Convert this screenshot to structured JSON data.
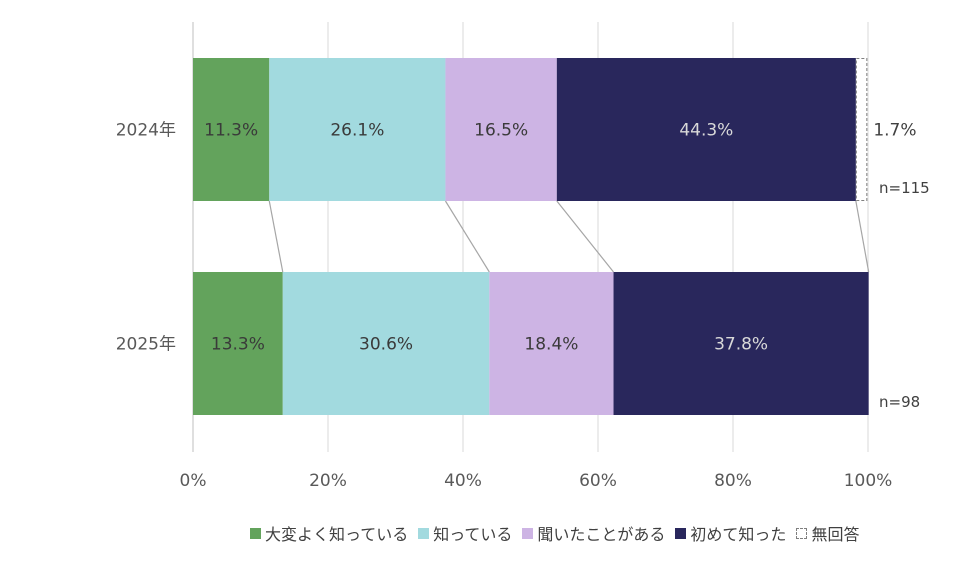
{
  "chart_data": {
    "type": "bar",
    "orientation": "horizontal",
    "stacked": true,
    "categories": [
      "2024年",
      "2025年"
    ],
    "series": [
      {
        "name": "大変よく知っている",
        "values": [
          11.3,
          13.3
        ],
        "color": "#63a35c",
        "label_color": "#3a3a3a"
      },
      {
        "name": "知っている",
        "values": [
          26.1,
          30.6
        ],
        "color": "#a2dadf",
        "label_color": "#3a3a3a"
      },
      {
        "name": "聞いたことがある",
        "values": [
          16.5,
          18.4
        ],
        "color": "#cdb4e4",
        "label_color": "#3a3a3a"
      },
      {
        "name": "初めて知った",
        "values": [
          44.3,
          37.8
        ],
        "color": "#29275c",
        "label_color": "#d9d9d9"
      },
      {
        "name": "無回答",
        "values": [
          1.7,
          0
        ],
        "color": "#ffffff",
        "label_color": "#404040",
        "dashed": true
      }
    ],
    "data_labels": [
      [
        "11.3%",
        "26.1%",
        "16.5%",
        "44.3%",
        "1.7%"
      ],
      [
        "13.3%",
        "30.6%",
        "18.4%",
        "37.8%",
        ""
      ]
    ],
    "sample_sizes": [
      "n=115",
      "n=98"
    ],
    "x_ticks": [
      "0%",
      "20%",
      "40%",
      "60%",
      "80%",
      "100%"
    ],
    "xlim": [
      0,
      100
    ],
    "grid": true,
    "legend_position": "bottom-right",
    "series_lines": true
  }
}
